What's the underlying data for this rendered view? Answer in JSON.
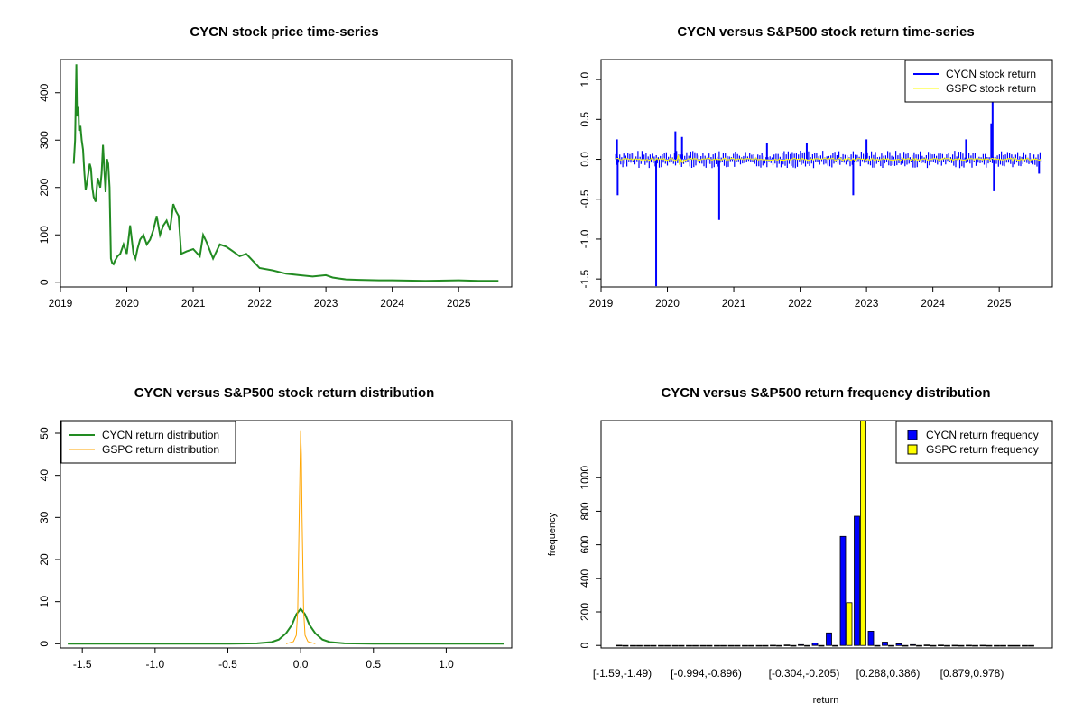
{
  "chart_data": [
    {
      "type": "line",
      "title": "CYCN stock price time-series",
      "xlabel": "",
      "ylabel": "",
      "xlim": [
        2019.0,
        2025.8
      ],
      "ylim": [
        -10,
        470
      ],
      "x_ticks": [
        2019,
        2020,
        2021,
        2022,
        2023,
        2024,
        2025
      ],
      "y_ticks": [
        0,
        100,
        200,
        300,
        400
      ],
      "grid": false,
      "series": [
        {
          "color": "#228B22",
          "x": [
            2019.2,
            2019.22,
            2019.24,
            2019.25,
            2019.27,
            2019.28,
            2019.3,
            2019.32,
            2019.34,
            2019.36,
            2019.38,
            2019.4,
            2019.42,
            2019.44,
            2019.46,
            2019.48,
            2019.5,
            2019.53,
            2019.56,
            2019.58,
            2019.6,
            2019.62,
            2019.64,
            2019.66,
            2019.68,
            2019.7,
            2019.72,
            2019.74,
            2019.76,
            2019.78,
            2019.8,
            2019.82,
            2019.84,
            2019.86,
            2019.9,
            2019.95,
            2020.0,
            2020.05,
            2020.1,
            2020.13,
            2020.16,
            2020.2,
            2020.25,
            2020.3,
            2020.35,
            2020.4,
            2020.45,
            2020.5,
            2020.55,
            2020.6,
            2020.65,
            2020.7,
            2020.74,
            2020.78,
            2020.82,
            2020.9,
            2021.0,
            2021.1,
            2021.15,
            2021.2,
            2021.3,
            2021.4,
            2021.5,
            2021.6,
            2021.7,
            2021.8,
            2021.9,
            2022.0,
            2022.2,
            2022.4,
            2022.6,
            2022.8,
            2023.0,
            2023.1,
            2023.2,
            2023.3,
            2023.5,
            2023.8,
            2024.0,
            2024.5,
            2025.0,
            2025.3,
            2025.6
          ],
          "y": [
            250,
            300,
            460,
            350,
            370,
            320,
            330,
            300,
            280,
            230,
            195,
            210,
            230,
            250,
            240,
            200,
            180,
            170,
            220,
            210,
            200,
            230,
            290,
            240,
            190,
            260,
            250,
            200,
            50,
            40,
            38,
            45,
            50,
            55,
            60,
            80,
            60,
            120,
            60,
            50,
            70,
            90,
            100,
            80,
            90,
            110,
            140,
            100,
            120,
            130,
            110,
            165,
            150,
            140,
            60,
            65,
            70,
            55,
            100,
            85,
            50,
            80,
            75,
            65,
            55,
            60,
            45,
            30,
            25,
            18,
            15,
            12,
            15,
            10,
            8,
            6,
            5,
            4,
            4,
            3,
            4,
            3,
            3
          ]
        }
      ]
    },
    {
      "type": "line",
      "title": "CYCN versus S&P500 stock return time-series",
      "xlabel": "",
      "ylabel": "",
      "xlim": [
        2019.0,
        2025.8
      ],
      "ylim": [
        -1.6,
        1.25
      ],
      "x_ticks": [
        2019,
        2020,
        2021,
        2022,
        2023,
        2024,
        2025
      ],
      "y_ticks": [
        -1.5,
        -1.0,
        -0.5,
        0.0,
        0.5,
        1.0
      ],
      "legend_position": "top-right",
      "series": [
        {
          "name": "CYCN stock return",
          "color": "#0000FF"
        },
        {
          "name": "GSPC stock return",
          "color": "#FFFF00"
        }
      ],
      "spikes": [
        {
          "x": 2019.24,
          "y": 0.25
        },
        {
          "x": 2019.25,
          "y": -0.45
        },
        {
          "x": 2019.83,
          "y": -1.59
        },
        {
          "x": 2020.12,
          "y": 0.35
        },
        {
          "x": 2020.22,
          "y": 0.28
        },
        {
          "x": 2020.78,
          "y": -0.76
        },
        {
          "x": 2021.5,
          "y": 0.2
        },
        {
          "x": 2022.1,
          "y": 0.2
        },
        {
          "x": 2022.8,
          "y": -0.45
        },
        {
          "x": 2023.0,
          "y": 0.25
        },
        {
          "x": 2024.5,
          "y": 0.25
        },
        {
          "x": 2024.9,
          "y": 0.9
        },
        {
          "x": 2024.88,
          "y": 0.45
        },
        {
          "x": 2024.92,
          "y": -0.4
        },
        {
          "x": 2025.6,
          "y": -0.18
        }
      ]
    },
    {
      "type": "line",
      "title": "CYCN versus S&P500 stock return distribution",
      "xlabel": "",
      "ylabel": "",
      "xlim": [
        -1.65,
        1.45
      ],
      "ylim": [
        -1,
        53
      ],
      "x_ticks": [
        -1.5,
        -1.0,
        -0.5,
        0.0,
        0.5,
        1.0
      ],
      "y_ticks": [
        0,
        10,
        20,
        30,
        40,
        50
      ],
      "legend_position": "top-left",
      "series": [
        {
          "name": "CYCN return distribution",
          "color": "#228B22",
          "x": [
            -1.6,
            -0.5,
            -0.3,
            -0.2,
            -0.15,
            -0.1,
            -0.06,
            -0.03,
            0.0,
            0.03,
            0.06,
            0.1,
            0.15,
            0.2,
            0.3,
            0.5,
            1.4
          ],
          "y": [
            0,
            0,
            0.1,
            0.4,
            1.0,
            2.5,
            4.5,
            7.0,
            8.3,
            7.0,
            4.5,
            2.5,
            1.0,
            0.4,
            0.1,
            0,
            0
          ]
        },
        {
          "name": "GSPC return distribution",
          "color": "#FFA500",
          "x": [
            -0.1,
            -0.05,
            -0.03,
            -0.02,
            -0.01,
            0.0,
            0.005,
            0.01,
            0.02,
            0.03,
            0.05,
            0.1
          ],
          "y": [
            0,
            0.5,
            2,
            8,
            30,
            50.5,
            45,
            30,
            8,
            2,
            0.5,
            0
          ]
        }
      ]
    },
    {
      "type": "bar",
      "title": "CYCN versus S&P500 return frequency distribution",
      "xlabel": "return",
      "ylabel": "frequency",
      "ylim": [
        -15,
        1340
      ],
      "y_ticks": [
        0,
        200,
        400,
        600,
        800,
        1000
      ],
      "legend_position": "top-right",
      "shown_category_labels": [
        "[-1.59,-1.49)",
        "[-0.994,-0.896)",
        "[-0.304,-0.205)",
        "[0.288,0.386)",
        "[0.879,0.978)"
      ],
      "shown_category_indices": [
        0,
        6,
        13,
        19,
        25
      ],
      "category_count": 30,
      "series": [
        {
          "name": "CYCN return frequency",
          "color": "#0000FF",
          "values": [
            1,
            0,
            0,
            0,
            0,
            0,
            0,
            0,
            0,
            0,
            0,
            1,
            3,
            5,
            15,
            75,
            650,
            770,
            85,
            20,
            10,
            5,
            3,
            2,
            1,
            1,
            1,
            0,
            0,
            0
          ]
        },
        {
          "name": "GSPC return frequency",
          "color": "#FFFF00",
          "values": [
            0,
            0,
            0,
            0,
            0,
            0,
            0,
            0,
            0,
            0,
            0,
            0,
            0,
            0,
            0,
            0,
            255,
            1340,
            0,
            0,
            0,
            0,
            0,
            0,
            0,
            0,
            0,
            0,
            0,
            0
          ]
        }
      ]
    }
  ]
}
